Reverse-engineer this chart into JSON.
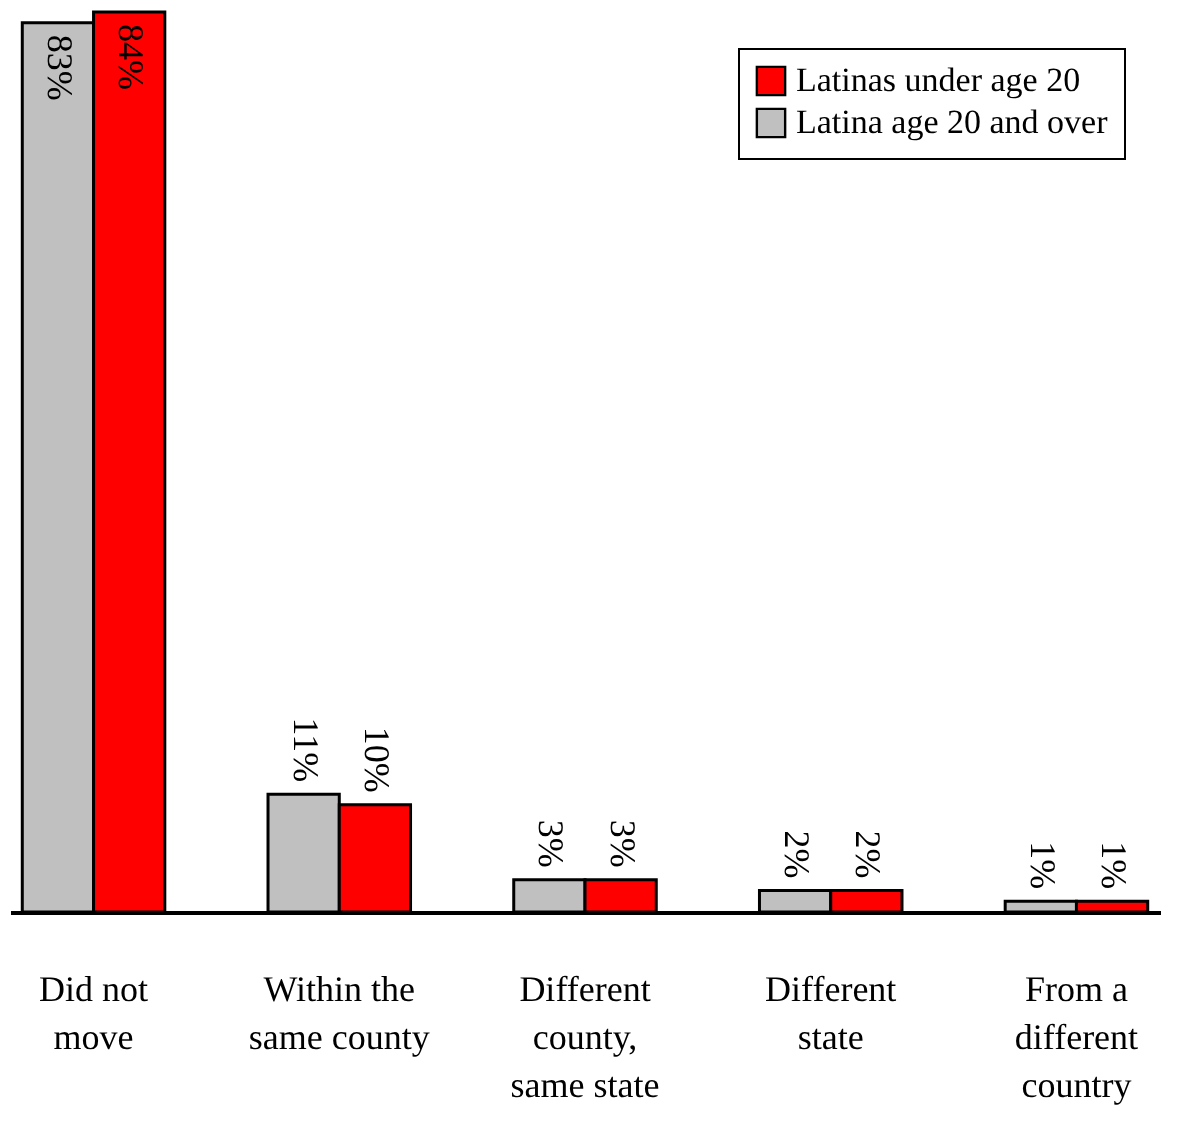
{
  "chart_data": {
    "type": "bar",
    "categories": [
      "Did not move",
      "Within the same county",
      "Different county, same state",
      "Different state",
      "From a different country"
    ],
    "series": [
      {
        "name": "Latina age 20 and over",
        "color": "#c0c0c0",
        "values": [
          83,
          11,
          3,
          2,
          1
        ],
        "value_labels": [
          "83%",
          "11%",
          "3%",
          "2%",
          "1%"
        ]
      },
      {
        "name": "Latinas under age 20",
        "color": "#ff0000",
        "values": [
          84,
          10,
          3,
          2,
          1
        ],
        "value_labels": [
          "84%",
          "10%",
          "3%",
          "2%",
          "1%"
        ]
      }
    ],
    "legend": "top right",
    "grid": false
  }
}
